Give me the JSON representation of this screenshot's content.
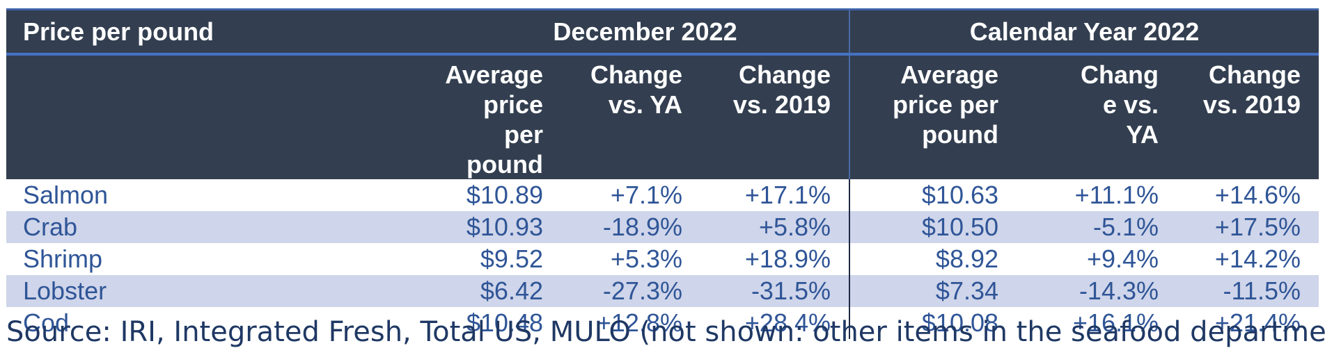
{
  "header": {
    "corner_label": "Price per pound",
    "group1_label": "December 2022",
    "group2_label": "Calendar Year 2022",
    "columns": [
      [
        "Average",
        "price per",
        "pound"
      ],
      [
        "Change",
        "vs. YA"
      ],
      [
        "Change",
        "vs. 2019"
      ],
      [
        "Average",
        "price per",
        "pound"
      ],
      [
        "Chang",
        "e vs.",
        "YA"
      ],
      [
        "Change",
        "vs. 2019"
      ]
    ]
  },
  "rows": [
    {
      "name": "Salmon",
      "values": [
        "$10.89",
        "+7.1%",
        "+17.1%",
        "$10.63",
        "+11.1%",
        "+14.6%"
      ]
    },
    {
      "name": "Crab",
      "values": [
        "$10.93",
        "-18.9%",
        "+5.8%",
        "$10.50",
        "-5.1%",
        "+17.5%"
      ]
    },
    {
      "name": "Shrimp",
      "values": [
        "$9.52",
        "+5.3%",
        "+18.9%",
        "$8.92",
        "+9.4%",
        "+14.2%"
      ]
    },
    {
      "name": "Lobster",
      "values": [
        "$6.42",
        "-27.3%",
        "-31.5%",
        "$7.34",
        "-14.3%",
        "-11.5%"
      ]
    },
    {
      "name": "Cod",
      "values": [
        "$10.48",
        "+12.8%",
        "+28.4%",
        "$10.08",
        "+16.1%",
        "+21.4%"
      ]
    }
  ],
  "source": "Source: IRI, Integrated Fresh, Total US, MULO (not shown: other items in the seafood department)",
  "colors": {
    "header_bg": "#333f50",
    "header_rule": "#4472c4",
    "body_text": "#2f5597",
    "alt_row_bg": "#cfd5ea",
    "source_text": "#1f3864"
  }
}
